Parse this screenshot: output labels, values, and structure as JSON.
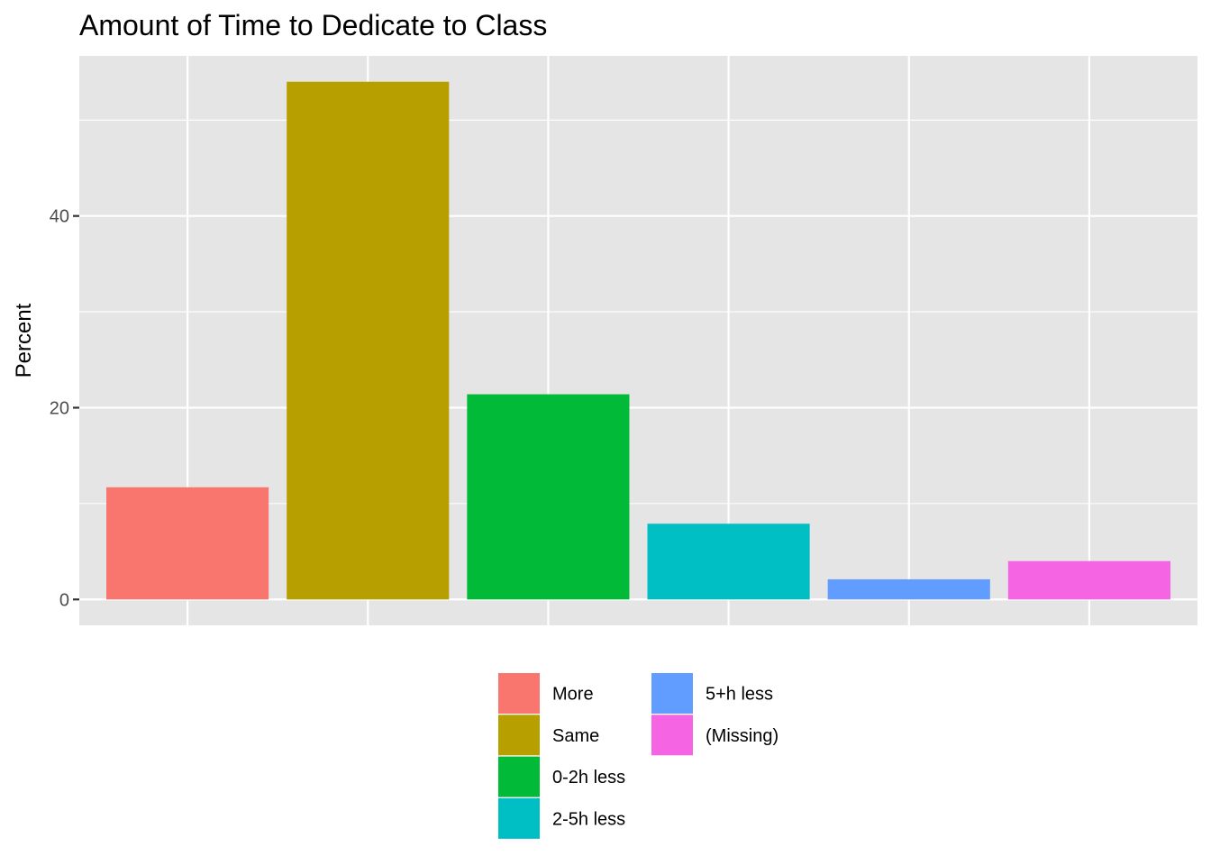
{
  "chart_data": {
    "type": "bar",
    "title": "Amount of Time to Dedicate to Class",
    "xlabel": "",
    "ylabel": "Percent",
    "categories": [
      "More",
      "Same",
      "0-2h less",
      "2-5h less",
      "5+h less",
      "(Missing)"
    ],
    "values": [
      11.7,
      54.0,
      21.4,
      7.9,
      2.1,
      4.0
    ],
    "colors": [
      "#F8766D",
      "#B79F00",
      "#00BA38",
      "#00BFC4",
      "#619CFF",
      "#F564E3"
    ],
    "ylim": [
      -2.7,
      56.7
    ],
    "yticks": [
      0,
      20,
      40
    ],
    "yticklabels": [
      "0",
      "20",
      "40"
    ],
    "grid": true,
    "panel_background": "#E5E5E5",
    "grid_color": "#FFFFFF",
    "legend_position": "bottom",
    "legend_columns": [
      [
        "More",
        "Same",
        "0-2h less",
        "2-5h less"
      ],
      [
        "5+h less",
        "(Missing)"
      ]
    ]
  }
}
